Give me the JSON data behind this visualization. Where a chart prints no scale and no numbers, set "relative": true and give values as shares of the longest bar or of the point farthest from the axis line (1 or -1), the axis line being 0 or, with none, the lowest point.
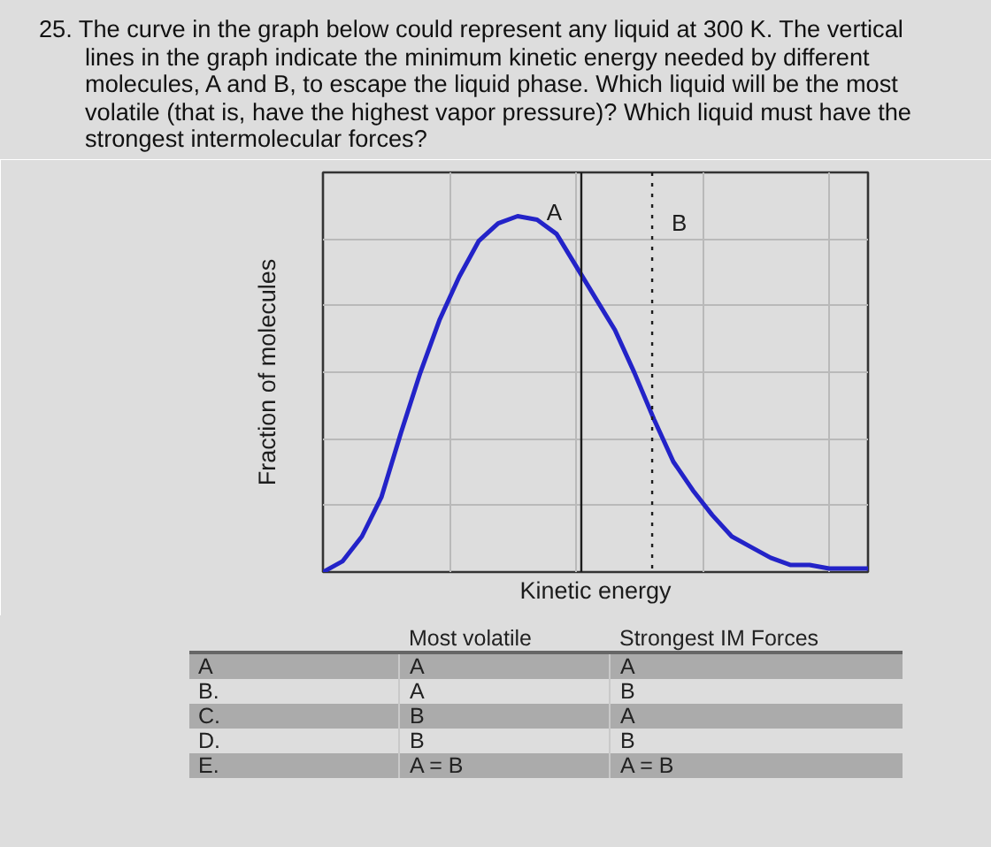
{
  "chart_data": {
    "type": "line",
    "title": "25. The curve in the graph below could represent any liquid at 300 K. The vertical lines in the graph indicate the minimum kinetic energy needed by different molecules, A and B, to escape the liquid phase. Which liquid will be the most volatile (that is, have the highest vapor pressure)? Which liquid must have the strongest intermolecular forces?",
    "xlabel": "Kinetic energy",
    "ylabel": "Fraction of molecules",
    "categories": [
      null,
      null,
      null,
      null,
      null,
      null,
      null,
      null,
      null,
      null,
      null,
      null,
      null,
      null,
      null,
      null,
      null,
      null,
      null,
      null,
      null,
      null,
      null,
      null,
      null,
      null,
      null,
      null,
      null
    ],
    "relative": true,
    "series": [
      {
        "color": "#2323c8",
        "values": [
          0,
          0.03,
          0.1,
          0.21,
          0.39,
          0.56,
          0.71,
          0.83,
          0.93,
          0.98,
          1.0,
          0.99,
          0.95,
          0.86,
          0.77,
          0.68,
          0.56,
          0.43,
          0.31,
          0.23,
          0.16,
          0.1,
          0.07,
          0.04,
          0.02,
          0.02,
          0.01,
          0.01,
          0.01
        ]
      }
    ],
    "grid": true,
    "annotations": [
      "A",
      "B",
      "Most volatile",
      "Strongest IM Forces",
      "A",
      "A",
      "A",
      "B.",
      "A",
      "B",
      "C.",
      "B",
      "A",
      "D.",
      "B",
      "B",
      "E.",
      "A = B",
      "A = B"
    ]
  }
}
